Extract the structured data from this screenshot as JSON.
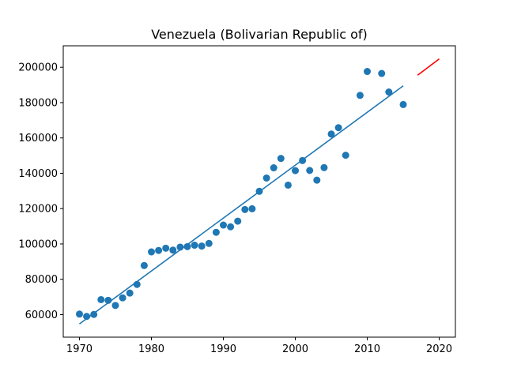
{
  "chart_data": {
    "type": "scatter",
    "title": "Venezuela (Bolivarian Republic of)",
    "xlabel": "",
    "ylabel": "",
    "xlim": [
      1967.75,
      2022.25
    ],
    "ylim": [
      47250,
      212150
    ],
    "xticks": [
      1970,
      1980,
      1990,
      2000,
      2010,
      2020
    ],
    "yticks": [
      60000,
      80000,
      100000,
      120000,
      140000,
      160000,
      180000,
      200000
    ],
    "grid": false,
    "series": [
      {
        "kind": "scatter",
        "color": "#1f77b4",
        "x": [
          1970,
          1971,
          1972,
          1973,
          1974,
          1975,
          1976,
          1977,
          1978,
          1979,
          1980,
          1981,
          1982,
          1983,
          1984,
          1985,
          1986,
          1987,
          1988,
          1989,
          1990,
          1991,
          1992,
          1993,
          1994,
          1995,
          1996,
          1997,
          1998,
          1999,
          2000,
          2001,
          2002,
          2003,
          2004,
          2005,
          2006,
          2007,
          2009,
          2010,
          2012,
          2013,
          2015
        ],
        "y": [
          60300,
          59000,
          60100,
          68500,
          68100,
          65200,
          69500,
          72200,
          77100,
          87800,
          95500,
          96300,
          97600,
          96500,
          98200,
          98500,
          99300,
          98800,
          100300,
          106600,
          110700,
          109700,
          112900,
          119500,
          119900,
          129800,
          137300,
          143100,
          148400,
          133300,
          141500,
          147200,
          141600,
          136100,
          143200,
          162200,
          165800,
          150200,
          184100,
          197600,
          196500,
          186000,
          178900
        ]
      },
      {
        "kind": "line",
        "color": "#1f77b4",
        "x": [
          1970,
          2015
        ],
        "y": [
          54750,
          189500
        ]
      },
      {
        "kind": "line",
        "color": "#ff0000",
        "x": [
          2017,
          2020
        ],
        "y": [
          195500,
          204700
        ]
      }
    ]
  }
}
